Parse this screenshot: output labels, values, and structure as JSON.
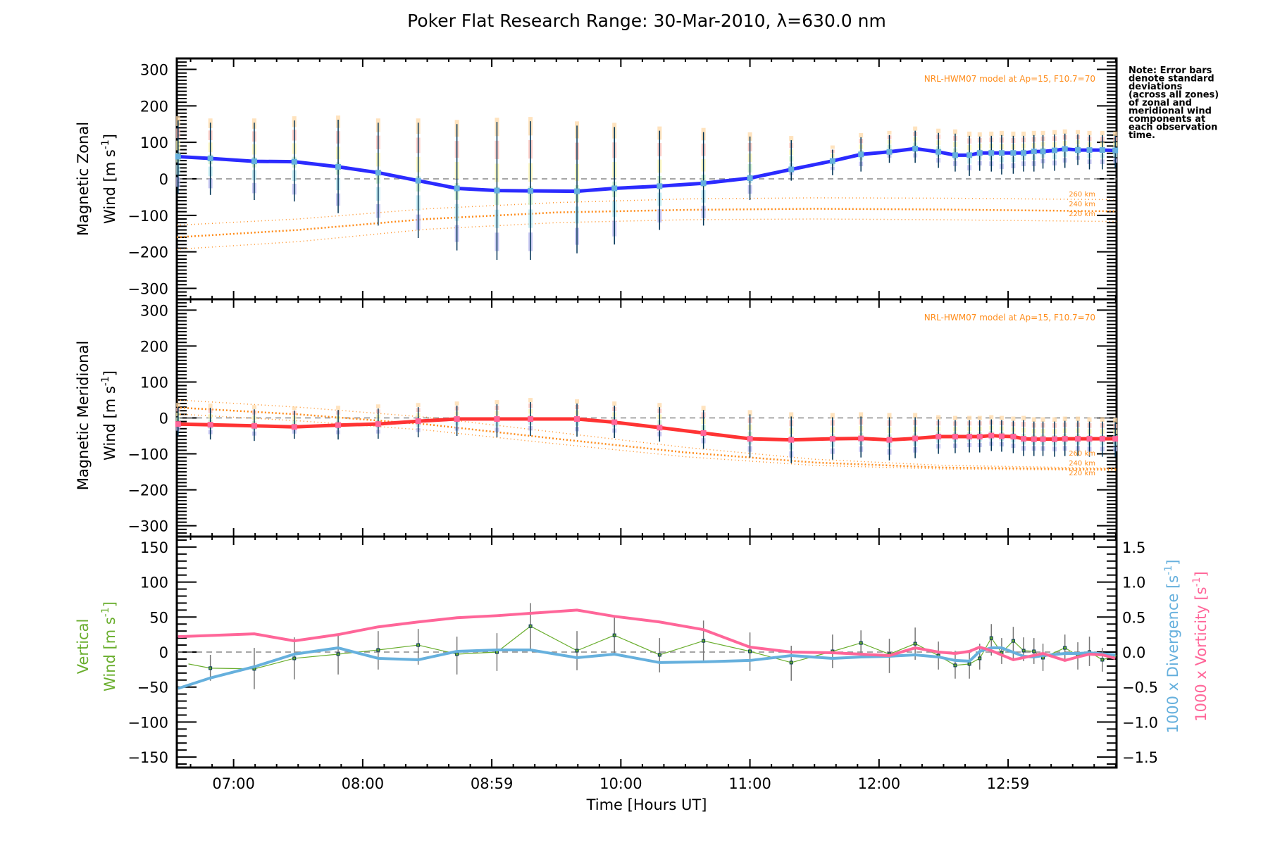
{
  "chart_data": [
    {
      "type": "line",
      "panel": "zonal",
      "title": "Poker Flat Research Range: 30-Mar-2010, λ=630.0 nm",
      "ylabel_line1": "Magnetic Zonal",
      "ylabel_line2": "Wind [m s",
      "ylabel_sup": "-1",
      "ylabel_end": "]",
      "ylim": [
        -330,
        330
      ],
      "yticks": [
        -300,
        -200,
        -100,
        0,
        100,
        200,
        300
      ],
      "model_note": "NRL-HWM07 model at Ap=15, F10.7=70",
      "observed": {
        "name": "Magnetic Zonal Wind",
        "color": "#2b2bff",
        "x": [
          6.57,
          6.82,
          7.16,
          7.47,
          7.81,
          8.12,
          8.43,
          8.73,
          9.04,
          9.3,
          9.66,
          9.95,
          10.3,
          10.64,
          11.0,
          11.32,
          11.64,
          11.86,
          12.08,
          12.28,
          12.46,
          12.59,
          12.7,
          12.78,
          12.87,
          12.95,
          13.04,
          13.12,
          13.2,
          13.27,
          13.36,
          13.44,
          13.54,
          13.63,
          13.73,
          13.83
        ],
        "y": [
          61,
          56,
          48,
          47,
          33,
          17,
          -5,
          -26,
          -32,
          -33,
          -34,
          -26,
          -20,
          -12,
          2,
          26,
          49,
          67,
          74,
          83,
          74,
          65,
          65,
          71,
          71,
          71,
          71,
          71,
          75,
          75,
          78,
          82,
          79,
          79,
          79,
          78
        ],
        "err_hi": [
          160,
          154,
          154,
          160,
          162,
          154,
          154,
          150,
          156,
          158,
          146,
          142,
          132,
          128,
          116,
          106,
          80,
          114,
          120,
          132,
          126,
          124,
          118,
          116,
          118,
          120,
          118,
          118,
          120,
          120,
          122,
          124,
          122,
          120,
          120,
          118
        ],
        "err_lo": [
          -40,
          -44,
          -58,
          -62,
          -94,
          -128,
          -162,
          -196,
          -222,
          -222,
          -204,
          -180,
          -140,
          -128,
          -58,
          -5,
          10,
          20,
          44,
          44,
          30,
          20,
          8,
          22,
          20,
          12,
          14,
          20,
          20,
          28,
          22,
          30,
          38,
          26,
          26,
          30
        ]
      },
      "model": [
        {
          "name": "260 km",
          "x": [
            6.56,
            7.5,
            8.5,
            9.5,
            10.5,
            11.5,
            12.5,
            13.84
          ],
          "y": [
            -127,
            -110,
            -82,
            -65,
            -55,
            -52,
            -53,
            -57
          ]
        },
        {
          "name": "240 km",
          "x": [
            6.56,
            7.5,
            8.5,
            9.5,
            10.5,
            11.5,
            12.5,
            13.84
          ],
          "y": [
            -160,
            -140,
            -110,
            -92,
            -85,
            -82,
            -84,
            -89
          ]
        },
        {
          "name": "220 km",
          "x": [
            6.56,
            7.5,
            8.5,
            9.5,
            10.5,
            11.5,
            12.5,
            13.84
          ],
          "y": [
            -193,
            -172,
            -138,
            -120,
            -112,
            -110,
            -112,
            -117
          ]
        }
      ],
      "note": [
        "Note: Error bars",
        "denote standard",
        "deviations",
        "(across all zones)",
        "of zonal and",
        "meridional wind",
        "components at",
        "each observation",
        "time."
      ]
    },
    {
      "type": "line",
      "panel": "meridional",
      "ylabel_line1": "Magnetic Meridional",
      "ylabel_line2": "Wind [m s",
      "ylabel_sup": "-1",
      "ylabel_end": "]",
      "ylim": [
        -330,
        330
      ],
      "yticks": [
        -300,
        -200,
        -100,
        0,
        100,
        200,
        300
      ],
      "model_note": "NRL-HWM07 model at Ap=15, F10.7=70",
      "observed": {
        "name": "Magnetic Meridional Wind",
        "color": "#ff3333",
        "x": [
          6.57,
          6.82,
          7.16,
          7.47,
          7.81,
          8.12,
          8.43,
          8.73,
          9.04,
          9.3,
          9.66,
          9.95,
          10.3,
          10.64,
          11.0,
          11.32,
          11.64,
          11.86,
          12.08,
          12.28,
          12.46,
          12.59,
          12.7,
          12.78,
          12.87,
          12.95,
          13.04,
          13.12,
          13.2,
          13.27,
          13.36,
          13.44,
          13.54,
          13.63,
          13.73,
          13.83
        ],
        "y": [
          -17,
          -19,
          -22,
          -25,
          -20,
          -17,
          -9,
          -3,
          -3,
          -3,
          -3,
          -12,
          -27,
          -42,
          -58,
          -61,
          -58,
          -57,
          -61,
          -57,
          -52,
          -52,
          -52,
          -52,
          -49,
          -51,
          -52,
          -58,
          -59,
          -59,
          -59,
          -58,
          -58,
          -58,
          -58,
          -58
        ],
        "err_hi": [
          30,
          28,
          24,
          20,
          22,
          26,
          30,
          34,
          38,
          44,
          40,
          34,
          30,
          22,
          10,
          4,
          2,
          4,
          2,
          2,
          -4,
          -6,
          -6,
          -6,
          -4,
          -6,
          -8,
          -6,
          -10,
          -10,
          -10,
          -8,
          -8,
          -10,
          -10,
          -12
        ],
        "err_lo": [
          -50,
          -60,
          -64,
          -58,
          -60,
          -58,
          -54,
          -50,
          -54,
          -50,
          -52,
          -56,
          -66,
          -86,
          -110,
          -126,
          -116,
          -110,
          -118,
          -112,
          -100,
          -98,
          -96,
          -96,
          -92,
          -94,
          -98,
          -106,
          -106,
          -106,
          -108,
          -106,
          -106,
          -108,
          -108,
          -108
        ]
      },
      "model": [
        {
          "name": "260 km",
          "x": [
            6.56,
            7.5,
            8.5,
            9.5,
            10.5,
            11.5,
            12.5,
            13.84
          ],
          "y": [
            50,
            30,
            2,
            -40,
            -82,
            -115,
            -132,
            -140
          ]
        },
        {
          "name": "240 km",
          "x": [
            6.56,
            7.5,
            8.5,
            9.5,
            10.5,
            11.5,
            12.5,
            13.84
          ],
          "y": [
            29,
            10,
            -18,
            -58,
            -96,
            -124,
            -138,
            -143
          ]
        },
        {
          "name": "220 km",
          "x": [
            6.56,
            7.5,
            8.5,
            9.5,
            10.5,
            11.5,
            12.5,
            13.84
          ],
          "y": [
            11,
            -8,
            -34,
            -72,
            -108,
            -132,
            -142,
            -146
          ]
        }
      ]
    },
    {
      "type": "line",
      "panel": "vertical",
      "ylabel_line1": "Vertical",
      "ylabel_line2": "Wind [m s",
      "ylabel_sup": "-1",
      "ylabel_end": "]",
      "ylim": [
        -165,
        165
      ],
      "yticks": [
        -150,
        -100,
        -50,
        0,
        50,
        100,
        150
      ],
      "y2label_div": "1000 x Divergence [s",
      "y2label_vor": "1000 x Vorticity [s",
      "y2label_sup": "-1",
      "y2label_end": "]",
      "y2lim": [
        -1.65,
        1.65
      ],
      "y2ticks": [
        "-1.5",
        "-1.0",
        "-0.5",
        "0.0",
        "0.5",
        "1.0",
        "1.5"
      ],
      "xlabel": "Time [Hours UT]",
      "xticks": [
        "07:00",
        "08:00",
        "08:59",
        "10:00",
        "11:00",
        "12:00",
        "12:59"
      ],
      "xtick_values": [
        7.0,
        8.0,
        9.0,
        10.0,
        11.0,
        12.0,
        13.0
      ],
      "xlim": [
        6.56,
        13.84
      ],
      "vertical_wind": {
        "name": "Vertical Wind",
        "color": "#6aae2e",
        "x": [
          6.65,
          6.82,
          7.16,
          7.47,
          7.81,
          8.12,
          8.43,
          8.73,
          9.04,
          9.3,
          9.66,
          9.95,
          10.3,
          10.64,
          11.0,
          11.32,
          11.64,
          11.86,
          12.08,
          12.28,
          12.46,
          12.59,
          12.7,
          12.78,
          12.87,
          12.95,
          13.04,
          13.12,
          13.2,
          13.27,
          13.44,
          13.54,
          13.63,
          13.73,
          13.84
        ],
        "y": [
          -17,
          -23,
          -24,
          -9,
          -3,
          3,
          10,
          -3,
          0,
          37,
          2,
          24,
          -4,
          16,
          1,
          -15,
          1,
          13,
          -3,
          12,
          -5,
          -19,
          -17,
          -9,
          20,
          -1,
          16,
          2,
          1,
          -8,
          6,
          -5,
          0,
          -11,
          -5
        ],
        "err_hi": [
          null,
          -4,
          6,
          21,
          26,
          30,
          33,
          22,
          27,
          70,
          30,
          50,
          20,
          45,
          28,
          9,
          25,
          31,
          19,
          35,
          15,
          2,
          2,
          12,
          40,
          20,
          36,
          21,
          20,
          12,
          25,
          14,
          22,
          6,
          null
        ],
        "err_lo": [
          null,
          -41,
          -53,
          -39,
          -32,
          -25,
          -18,
          -32,
          -27,
          4,
          -26,
          -4,
          -29,
          -12,
          -27,
          -41,
          -23,
          -5,
          -30,
          -11,
          -25,
          -38,
          -38,
          -25,
          -5,
          -17,
          -10,
          -13,
          -17,
          -27,
          -10,
          -25,
          -20,
          -28,
          null
        ]
      },
      "divergence": {
        "name": "1000 x Divergence",
        "color": "#66b0dd",
        "x": [
          6.57,
          6.82,
          7.16,
          7.47,
          7.81,
          8.12,
          8.43,
          8.73,
          9.04,
          9.3,
          9.66,
          9.95,
          10.3,
          10.64,
          11.0,
          11.32,
          11.64,
          11.86,
          12.08,
          12.28,
          12.46,
          12.59,
          12.7,
          12.78,
          12.87,
          12.95,
          13.12,
          13.2,
          13.27,
          13.44,
          13.54,
          13.63,
          13.83
        ],
        "y": [
          -0.52,
          -0.37,
          -0.21,
          -0.03,
          0.06,
          -0.09,
          -0.11,
          0.01,
          0.03,
          0.03,
          -0.08,
          -0.03,
          -0.15,
          -0.14,
          -0.12,
          -0.05,
          -0.09,
          -0.07,
          -0.06,
          -0.04,
          -0.07,
          -0.12,
          -0.13,
          0.01,
          0.06,
          0.06,
          -0.06,
          -0.07,
          -0.05,
          -0.02,
          -0.02,
          -0.01,
          -0.04
        ]
      },
      "vorticity": {
        "name": "1000 x Vorticity",
        "color": "#ff6699",
        "x": [
          6.57,
          7.16,
          7.47,
          7.81,
          8.12,
          8.43,
          8.73,
          9.04,
          9.66,
          9.95,
          10.3,
          10.64,
          11.0,
          11.32,
          11.64,
          11.86,
          12.08,
          12.28,
          12.46,
          12.59,
          12.7,
          12.78,
          12.87,
          13.04,
          13.12,
          13.27,
          13.44,
          13.54,
          13.63,
          13.73,
          13.83
        ],
        "y": [
          0.22,
          0.26,
          0.16,
          0.25,
          0.36,
          0.43,
          0.49,
          0.52,
          0.6,
          0.51,
          0.43,
          0.32,
          0.07,
          0.0,
          -0.01,
          -0.03,
          -0.05,
          0.06,
          0.0,
          -0.02,
          0.01,
          0.07,
          0.02,
          -0.11,
          -0.08,
          -0.02,
          -0.12,
          -0.07,
          -0.03,
          -0.04,
          -0.09
        ]
      }
    }
  ]
}
